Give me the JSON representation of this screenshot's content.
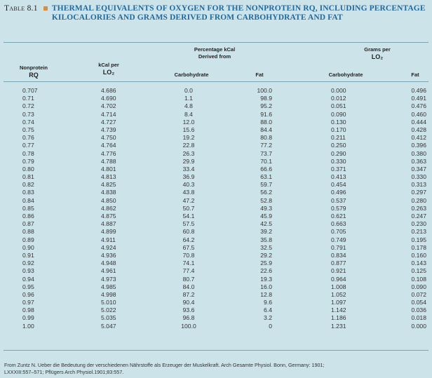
{
  "title": {
    "label": "Table 8.1",
    "text": "Thermal Equivalents of Oxygen for the Nonprotein RQ, Including Percentage Kilocalories and Grams Derived from Carbohydrate and Fat"
  },
  "headers": {
    "rq": [
      "Nonprotein",
      "RQ"
    ],
    "kcal": [
      "kCal per",
      "LO₂"
    ],
    "pct_group": [
      "Percentage kCal",
      "Derived from"
    ],
    "grams_group": [
      "Grams per",
      "LO₂"
    ],
    "carb": "Carbohydrate",
    "fat": "Fat"
  },
  "table": {
    "rq": [
      "0.707",
      "0.71",
      "0.72",
      "0.73",
      "0.74",
      "0.75",
      "0.76",
      "0.77",
      "0.78",
      "0.79",
      "0.80",
      "0.81",
      "0.82",
      "0.83",
      "0.84",
      "0.85",
      "0.86",
      "0.87",
      "0.88",
      "0.89",
      "0.90",
      "0.91",
      "0.92",
      "0.93",
      "0.94",
      "0.95",
      "0.96",
      "0.97",
      "0.98",
      "0.99",
      "1.00"
    ],
    "kcal": [
      "4.686",
      "4.690",
      "4.702",
      "4.714",
      "4.727",
      "4.739",
      "4.750",
      "4.764",
      "4.776",
      "4.788",
      "4.801",
      "4.813",
      "4.825",
      "4.838",
      "4.850",
      "4.862",
      "4.875",
      "4.887",
      "4.899",
      "4.911",
      "4.924",
      "4.936",
      "4.948",
      "4.961",
      "4.973",
      "4.985",
      "4.998",
      "5.010",
      "5.022",
      "5.035",
      "5.047"
    ],
    "pct_carb": [
      "0.0",
      "1.1",
      "4.8",
      "8.4",
      "12.0",
      "15.6",
      "19.2",
      "22.8",
      "26.3",
      "29.9",
      "33.4",
      "36.9",
      "40.3",
      "43.8",
      "47.2",
      "50.7",
      "54.1",
      "57.5",
      "60.8",
      "64.2",
      "67.5",
      "70.8",
      "74.1",
      "77.4",
      "80.7",
      "84.0",
      "87.2",
      "90.4",
      "93.6",
      "96.8",
      "100.0"
    ],
    "pct_fat": [
      "100.0",
      "98.9",
      "95.2",
      "91.6",
      "88.0",
      "84.4",
      "80.8",
      "77.2",
      "73.7",
      "70.1",
      "66.6",
      "63.1",
      "59.7",
      "56.2",
      "52.8",
      "49.3",
      "45.9",
      "42.5",
      "39.2",
      "35.8",
      "32.5",
      "29.2",
      "25.9",
      "22.6",
      "19.3",
      "16.0",
      "12.8",
      "9.6",
      "6.4",
      "3.2",
      "0"
    ],
    "g_carb": [
      "0.000",
      "0.012",
      "0.051",
      "0.090",
      "0.130",
      "0.170",
      "0.211",
      "0.250",
      "0.290",
      "0.330",
      "0.371",
      "0.413",
      "0.454",
      "0.496",
      "0.537",
      "0.579",
      "0.621",
      "0.663",
      "0.705",
      "0.749",
      "0.791",
      "0.834",
      "0.877",
      "0.921",
      "0.964",
      "1.008",
      "1.052",
      "1.097",
      "1.142",
      "1.186",
      "1.231"
    ],
    "g_fat": [
      "0.496",
      "0.491",
      "0.476",
      "0.460",
      "0.444",
      "0.428",
      "0.412",
      "0.396",
      "0.380",
      "0.363",
      "0.347",
      "0.330",
      "0.313",
      "0.297",
      "0.280",
      "0.263",
      "0.247",
      "0.230",
      "0.213",
      "0.195",
      "0.178",
      "0.160",
      "0.143",
      "0.125",
      "0.108",
      "0.090",
      "0.072",
      "0.054",
      "0.036",
      "0.018",
      "0.000"
    ]
  },
  "footnote": {
    "line1": "From Zuntz N. Ueber die Bedeutung der verschiedenen Nährstoffe als Erzeuger der Muskelkraft. Arch Gesamte Physiol. Bonn, Germany: 1901;",
    "line2": "LXXXIII:557–571; Pflügers Arch Physiol.1901;83:557."
  },
  "colors": {
    "background": "#cde3ea",
    "title": "#1f6aa0",
    "accent": "#e08a3c"
  }
}
